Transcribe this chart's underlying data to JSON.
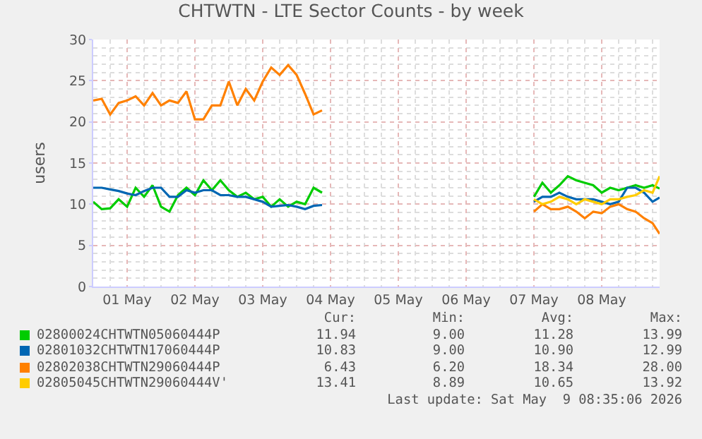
{
  "chart_data": {
    "type": "line",
    "title": "CHTWTN - LTE Sector Counts - by week",
    "ylabel": "users",
    "x": [
      "2026-05-01T00:00",
      "2026-05-01T03:00",
      "2026-05-01T06:00",
      "2026-05-01T09:00",
      "2026-05-01T12:00",
      "2026-05-01T15:00",
      "2026-05-01T18:00",
      "2026-05-01T21:00",
      "2026-05-02T00:00",
      "2026-05-02T03:00",
      "2026-05-02T06:00",
      "2026-05-02T09:00",
      "2026-05-02T12:00",
      "2026-05-02T15:00",
      "2026-05-02T18:00",
      "2026-05-02T21:00",
      "2026-05-03T00:00",
      "2026-05-03T03:00",
      "2026-05-03T06:00",
      "2026-05-03T09:00",
      "2026-05-03T12:00",
      "2026-05-03T15:00",
      "2026-05-03T18:00",
      "2026-05-03T21:00",
      "2026-05-04T00:00",
      "2026-05-04T03:00",
      "2026-05-04T06:00",
      "2026-05-04T09:00",
      "2026-05-05T12:00",
      "2026-05-07T12:00",
      "2026-05-07T15:00",
      "2026-05-07T18:00",
      "2026-05-07T21:00",
      "2026-05-08T00:00",
      "2026-05-08T03:00",
      "2026-05-08T06:00",
      "2026-05-08T09:00",
      "2026-05-08T12:00",
      "2026-05-08T15:00",
      "2026-05-08T18:00",
      "2026-05-08T21:00",
      "2026-05-09T00:00",
      "2026-05-09T03:00",
      "2026-05-09T06:00",
      "2026-05-09T08:30"
    ],
    "series": [
      {
        "name": "02800024CHTWTN05060444P",
        "color": "#00cc00",
        "values": [
          10.3,
          9.4,
          9.5,
          10.6,
          9.7,
          12.0,
          10.9,
          12.3,
          9.7,
          9.1,
          11.1,
          12.0,
          11.1,
          12.9,
          11.7,
          12.9,
          11.7,
          10.9,
          11.4,
          10.6,
          10.9,
          9.7,
          10.6,
          9.7,
          10.3,
          10.0,
          12.0,
          11.4,
          null,
          10.9,
          12.6,
          11.4,
          12.3,
          13.4,
          12.9,
          12.6,
          12.3,
          11.4,
          12.0,
          11.7,
          12.0,
          12.3,
          12.0,
          12.3,
          11.9
        ]
      },
      {
        "name": "02801032CHTWTN17060444P",
        "color": "#0066b3",
        "values": [
          12.0,
          12.0,
          11.8,
          11.6,
          11.3,
          11.1,
          11.6,
          12.0,
          12.0,
          10.9,
          10.9,
          11.7,
          11.4,
          11.7,
          11.7,
          11.1,
          11.1,
          10.9,
          10.9,
          10.6,
          10.3,
          9.7,
          9.8,
          9.9,
          9.7,
          9.4,
          9.8,
          9.9,
          null,
          10.3,
          10.9,
          10.9,
          11.4,
          10.9,
          10.6,
          10.6,
          10.6,
          10.3,
          10.0,
          10.3,
          12.0,
          12.0,
          11.4,
          10.3,
          10.8
        ]
      },
      {
        "name": "02802038CHTWTN29060444P",
        "color": "#ff8000",
        "values": [
          22.6,
          22.8,
          20.9,
          22.3,
          22.6,
          23.1,
          22.0,
          23.5,
          22.0,
          22.6,
          22.3,
          23.7,
          20.3,
          20.3,
          22.0,
          22.0,
          24.9,
          22.0,
          24.0,
          22.6,
          24.9,
          26.6,
          25.7,
          26.9,
          25.7,
          23.4,
          20.9,
          21.4,
          null,
          9.1,
          10.0,
          9.4,
          9.4,
          9.7,
          9.1,
          8.3,
          9.1,
          8.9,
          9.7,
          10.0,
          9.4,
          9.1,
          8.3,
          7.7,
          6.4
        ]
      },
      {
        "name": "02805045CHTWTN29060444V'",
        "color": "#ffcc00",
        "values": [
          null,
          null,
          null,
          null,
          null,
          null,
          null,
          null,
          null,
          null,
          null,
          null,
          null,
          null,
          null,
          null,
          null,
          null,
          null,
          null,
          null,
          null,
          null,
          null,
          null,
          null,
          null,
          null,
          null,
          10.6,
          10.0,
          10.3,
          10.9,
          10.6,
          10.0,
          10.6,
          10.3,
          10.0,
          10.6,
          10.6,
          10.9,
          11.1,
          11.7,
          11.4,
          13.4
        ]
      }
    ],
    "xlim": [
      "2026-05-01T00:00",
      "2026-05-09T08:30"
    ],
    "xticks": [
      {
        "value": "2026-05-01T12:00",
        "label": "01 May"
      },
      {
        "value": "2026-05-02T12:00",
        "label": "02 May"
      },
      {
        "value": "2026-05-03T12:00",
        "label": "03 May"
      },
      {
        "value": "2026-05-04T12:00",
        "label": "04 May"
      },
      {
        "value": "2026-05-05T12:00",
        "label": "05 May"
      },
      {
        "value": "2026-05-06T12:00",
        "label": "06 May"
      },
      {
        "value": "2026-05-07T12:00",
        "label": "07 May"
      },
      {
        "value": "2026-05-08T12:00",
        "label": "08 May"
      }
    ],
    "ylim": [
      0,
      30
    ],
    "yticks": [
      0,
      5,
      10,
      15,
      20,
      25,
      30
    ],
    "grid": true,
    "legend": "bottom",
    "annotations": [
      "Cur:",
      "Min:",
      "Avg:",
      "Max:",
      "11.94",
      "9.00",
      "11.28",
      "13.99",
      "10.83",
      "9.00",
      "10.90",
      "12.99",
      "6.43",
      "6.20",
      "18.34",
      "28.00",
      "13.41",
      "8.89",
      "10.65",
      "13.92",
      "Last update: Sat May  9 08:35:06 2026"
    ]
  }
}
